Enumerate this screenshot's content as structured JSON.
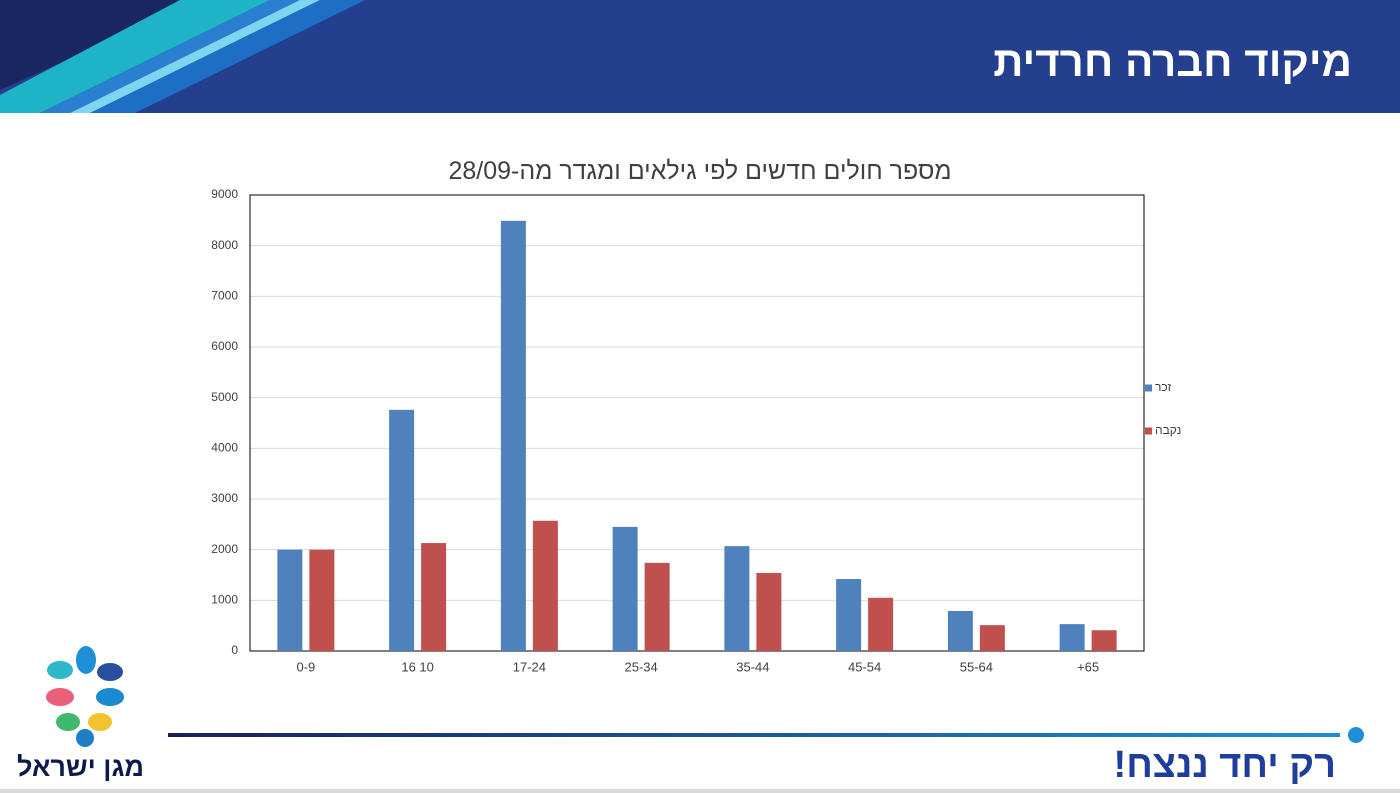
{
  "header": {
    "title": "מיקוד חברה חרדית"
  },
  "chart_data": {
    "type": "bar",
    "title": "מספר חולים חדשים לפי גילאים ומגדר מה-28/09",
    "categories": [
      "0-9",
      "16 10",
      "17-24",
      "25-34",
      "35-44",
      "45-54",
      "55-64",
      "+65"
    ],
    "series": [
      {
        "name": "זכר",
        "color": "#4f81bd",
        "values": [
          2000,
          4760,
          8490,
          2450,
          2070,
          1420,
          790,
          530
        ]
      },
      {
        "name": "נקבה",
        "color": "#c0504d",
        "values": [
          2000,
          2130,
          2570,
          1740,
          1540,
          1050,
          510,
          410
        ]
      }
    ],
    "ylim": [
      0,
      9000
    ],
    "yticks": [
      0,
      1000,
      2000,
      3000,
      4000,
      5000,
      6000,
      7000,
      8000,
      9000
    ],
    "grid": true,
    "legend": "right"
  },
  "footer": {
    "logo": "מגן ישראל",
    "slogan": "רק יחד ננצח!"
  }
}
